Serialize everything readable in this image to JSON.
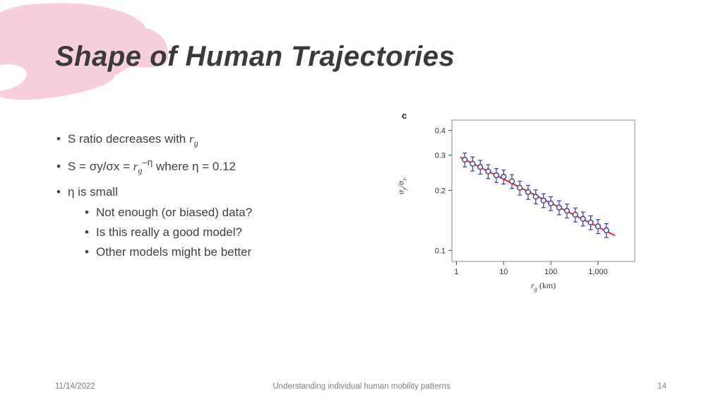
{
  "slide": {
    "title": "Shape of Human Trajectories",
    "bullets": {
      "marker": "•",
      "b1": {
        "pre": "S ratio decreases with ",
        "var": "r",
        "var_sub": "g"
      },
      "b2": {
        "pre": "S = σy/σx = ",
        "var": "r",
        "var_sub": "g",
        "sup": "–η",
        "post": " where η = 0.12"
      },
      "b3": {
        "text": "η is small"
      },
      "sub_bullets": [
        "Not enough (or biased) data?",
        "Is this really a good model?",
        "Other models might be better"
      ]
    },
    "footer": {
      "date": "11/14/2022",
      "caption": "Understanding individual human mobility patterns",
      "page_number": "14"
    },
    "accent_color": "#f8cfda"
  },
  "chart_data": {
    "type": "scatter",
    "panel_label": "c",
    "ylabel_parts": [
      "σ",
      "y",
      "/σ",
      "x"
    ],
    "xlabel_parts": [
      "r",
      "g",
      " (km)"
    ],
    "x_scale": "log",
    "y_scale": "log",
    "xlim": [
      0.8,
      6000
    ],
    "ylim": [
      0.088,
      0.45
    ],
    "grid": false,
    "x_ticks": [
      {
        "v": 1,
        "label": "1"
      },
      {
        "v": 10,
        "label": "10"
      },
      {
        "v": 100,
        "label": "100"
      },
      {
        "v": 1000,
        "label": "1,000"
      }
    ],
    "y_ticks": [
      {
        "v": 0.1,
        "label": "0.1"
      },
      {
        "v": 0.2,
        "label": "0.2"
      },
      {
        "v": 0.3,
        "label": "0.3"
      },
      {
        "v": 0.4,
        "label": "0.4"
      }
    ],
    "points": {
      "x": [
        1.5,
        2.2,
        3.2,
        4.7,
        7,
        10,
        15,
        22,
        33,
        48,
        70,
        100,
        150,
        220,
        330,
        480,
        700,
        1000,
        1500
      ],
      "y": [
        0.285,
        0.272,
        0.262,
        0.249,
        0.238,
        0.234,
        0.222,
        0.206,
        0.196,
        0.186,
        0.178,
        0.172,
        0.164,
        0.158,
        0.151,
        0.144,
        0.138,
        0.132,
        0.126
      ],
      "rel_err": 0.08,
      "color": "#3a3a99"
    },
    "fit": {
      "amplitude": 0.3,
      "exponent": -0.12,
      "x_start": 1.2,
      "x_end": 2300,
      "color": "#d93025"
    }
  }
}
